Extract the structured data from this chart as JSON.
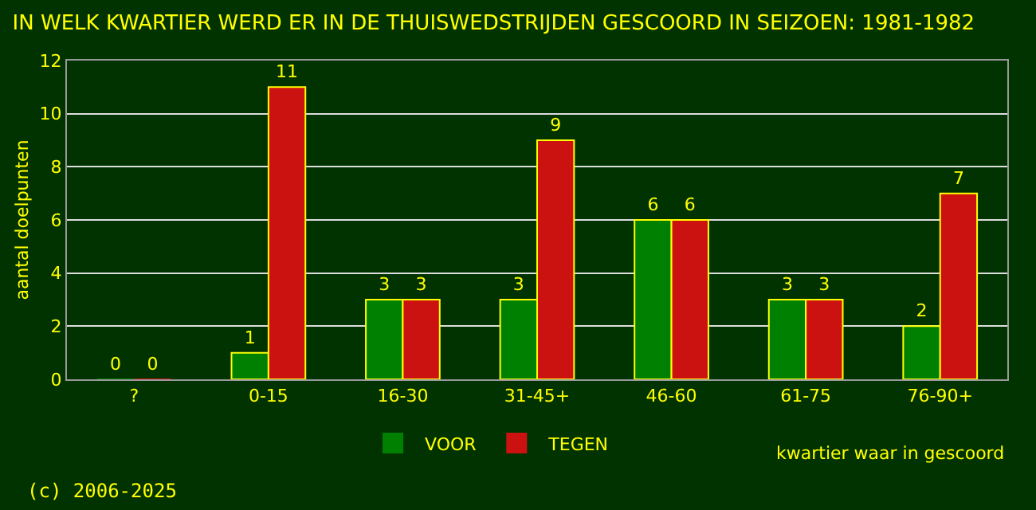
{
  "chart_data": {
    "type": "bar",
    "title": "IN WELK KWARTIER WERD ER IN DE THUISWEDSTRIJDEN GESCOORD IN SEIZOEN: 1981-1982",
    "categories": [
      "?",
      "0-15",
      "16-30",
      "31-45+",
      "46-60",
      "61-75",
      "76-90+"
    ],
    "series": [
      {
        "name": "VOOR",
        "color": "#008000",
        "values": [
          0,
          1,
          3,
          3,
          6,
          3,
          2
        ]
      },
      {
        "name": "TEGEN",
        "color": "#cc1111",
        "values": [
          0,
          11,
          3,
          9,
          6,
          3,
          7
        ]
      }
    ],
    "ylim": [
      0,
      12
    ],
    "yticks": [
      0,
      2,
      4,
      6,
      8,
      10,
      12
    ],
    "ylabel": "aantal doelpunten",
    "xlabel": "kwartier waar in gescoord",
    "grid": "y",
    "legend": "bottom",
    "data_labels": true,
    "annotations": [
      "(c) 2006-2025"
    ]
  }
}
